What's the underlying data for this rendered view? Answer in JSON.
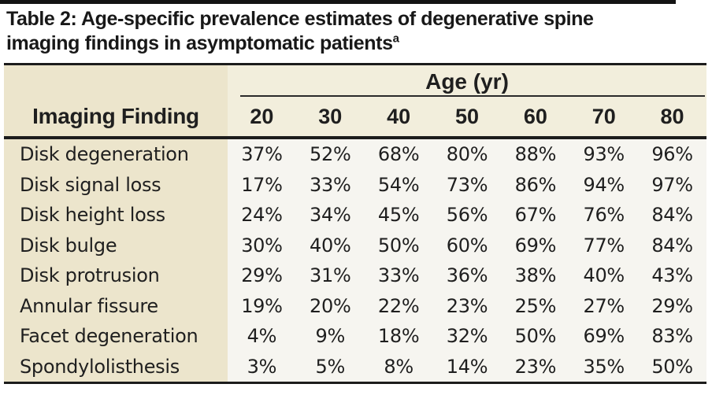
{
  "title": {
    "line1": "Table 2: Age-specific prevalence estimates of degenerative spine",
    "line2": "imaging findings in asymptomatic patients",
    "superscript": "a"
  },
  "table": {
    "corner_header": "Imaging Finding",
    "col_group_header": "Age (yr)",
    "columns": [
      "20",
      "30",
      "40",
      "50",
      "60",
      "70",
      "80"
    ],
    "rows": [
      {
        "label": "Disk degeneration",
        "values": [
          "37%",
          "52%",
          "68%",
          "80%",
          "88%",
          "93%",
          "96%"
        ]
      },
      {
        "label": "Disk signal loss",
        "values": [
          "17%",
          "33%",
          "54%",
          "73%",
          "86%",
          "94%",
          "97%"
        ]
      },
      {
        "label": "Disk height loss",
        "values": [
          "24%",
          "34%",
          "45%",
          "56%",
          "67%",
          "76%",
          "84%"
        ]
      },
      {
        "label": "Disk bulge",
        "values": [
          "30%",
          "40%",
          "50%",
          "60%",
          "69%",
          "77%",
          "84%"
        ]
      },
      {
        "label": "Disk protrusion",
        "values": [
          "29%",
          "31%",
          "33%",
          "36%",
          "38%",
          "40%",
          "43%"
        ]
      },
      {
        "label": "Annular fissure",
        "values": [
          "19%",
          "20%",
          "22%",
          "23%",
          "25%",
          "27%",
          "29%"
        ]
      },
      {
        "label": "Facet degeneration",
        "values": [
          "4%",
          "9%",
          "18%",
          "32%",
          "50%",
          "69%",
          "83%"
        ]
      },
      {
        "label": "Spondylolisthesis",
        "values": [
          "3%",
          "5%",
          "8%",
          "14%",
          "23%",
          "35%",
          "50%"
        ]
      }
    ]
  },
  "colors": {
    "label_column_bg": "#ece5cc",
    "header_bg": "#f2eedc",
    "data_bg": "#f6f5f0",
    "rule": "#1c1c1c",
    "text": "#1f1f1f"
  },
  "chart_data": {
    "type": "table",
    "title": "Table 2: Age-specific prevalence estimates of degenerative spine imaging findings in asymptomatic patients",
    "column_group": "Age (yr)",
    "columns": [
      "Imaging Finding",
      "20",
      "30",
      "40",
      "50",
      "60",
      "70",
      "80"
    ],
    "rows": [
      [
        "Disk degeneration",
        37,
        52,
        68,
        80,
        88,
        93,
        96
      ],
      [
        "Disk signal loss",
        17,
        33,
        54,
        73,
        86,
        94,
        97
      ],
      [
        "Disk height loss",
        24,
        34,
        45,
        56,
        67,
        76,
        84
      ],
      [
        "Disk bulge",
        30,
        40,
        50,
        60,
        69,
        77,
        84
      ],
      [
        "Disk protrusion",
        29,
        31,
        33,
        36,
        38,
        40,
        43
      ],
      [
        "Annular fissure",
        19,
        20,
        22,
        23,
        25,
        27,
        29
      ],
      [
        "Facet degeneration",
        4,
        9,
        18,
        32,
        50,
        69,
        83
      ],
      [
        "Spondylolisthesis",
        3,
        5,
        8,
        14,
        23,
        35,
        50
      ]
    ],
    "units": "%"
  }
}
